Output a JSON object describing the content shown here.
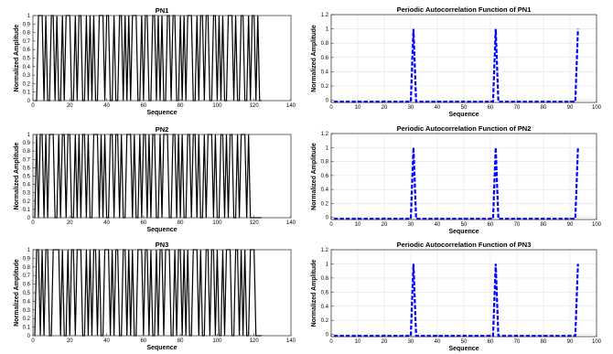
{
  "chart_data": [
    {
      "type": "line",
      "title": "PN1",
      "xlabel": "Sequence",
      "ylabel": "Normalized Amplitude",
      "xlim": [
        0,
        140
      ],
      "ylim": [
        0,
        1
      ],
      "xticks": [
        0,
        20,
        40,
        60,
        80,
        100,
        120,
        140
      ],
      "yticks": [
        0,
        0.1,
        0.2,
        0.3,
        0.4,
        0.5,
        0.6,
        0.7,
        0.8,
        0.9,
        1
      ],
      "yticklabels": [
        "0",
        "0.1",
        "0.2",
        "0.3",
        "0.4",
        "0.5",
        "0.6",
        "0.7",
        "0.8",
        "0.9",
        "1"
      ],
      "grid": false,
      "color": "#000000",
      "dash": false,
      "series": [
        {
          "values": [
            0,
            0,
            1,
            1,
            1,
            0,
            1,
            0,
            0,
            1,
            1,
            0,
            1,
            0,
            0,
            1,
            0,
            1,
            1,
            1,
            0,
            0,
            1,
            0,
            1,
            1,
            0,
            0,
            1,
            0,
            1,
            0,
            1,
            0,
            0,
            1,
            1,
            1,
            0,
            1,
            1,
            0,
            0,
            1,
            0,
            0,
            1,
            1,
            0,
            1,
            0,
            1,
            0,
            1,
            1,
            1,
            0,
            0,
            1,
            0,
            1,
            1,
            0,
            0,
            1,
            1,
            0,
            1,
            0,
            1,
            0,
            0,
            1,
            1,
            0,
            1,
            1,
            0,
            0,
            1,
            0,
            1,
            0,
            1,
            1,
            1,
            0,
            0,
            1,
            0,
            1,
            1,
            0,
            1,
            1,
            0,
            0,
            1,
            1,
            0,
            1,
            0,
            1,
            0,
            0,
            1,
            1,
            1,
            0,
            1,
            0,
            0,
            1,
            1,
            0,
            0,
            1,
            0,
            1,
            1,
            0,
            1,
            0,
            0
          ]
        }
      ]
    },
    {
      "type": "line",
      "title": "Periodic Autocorrelation Function of PN1",
      "xlabel": "Sequence",
      "ylabel": "Normalized Amplitude",
      "xlim": [
        0,
        100
      ],
      "ylim": [
        -0.03,
        1.2
      ],
      "xticks": [
        0,
        10,
        20,
        30,
        40,
        50,
        60,
        70,
        80,
        90,
        100
      ],
      "yticks": [
        0,
        0.2,
        0.4,
        0.6,
        0.8,
        1,
        1.2
      ],
      "yticklabels": [
        "0",
        "0.2",
        "0.4",
        "0.6",
        "0.8",
        "1",
        "1.2"
      ],
      "grid": true,
      "color": "#0000ff",
      "dash": true,
      "peaks": [
        31,
        62,
        93
      ],
      "baseline": -0.02,
      "n": 93
    },
    {
      "type": "line",
      "title": "PN2",
      "xlabel": "Sequence",
      "ylabel": "Normalized Amplitude",
      "xlim": [
        0,
        140
      ],
      "ylim": [
        0,
        1
      ],
      "xticks": [
        0,
        20,
        40,
        60,
        80,
        100,
        120,
        140
      ],
      "yticks": [
        0,
        0.1,
        0.2,
        0.3,
        0.4,
        0.5,
        0.6,
        0.7,
        0.8,
        0.9,
        1
      ],
      "yticklabels": [
        "0",
        "0.1",
        "0.2",
        "0.3",
        "0.4",
        "0.5",
        "0.6",
        "0.7",
        "0.8",
        "0.9",
        "1"
      ],
      "grid": false,
      "color": "#000000",
      "dash": false,
      "series": [
        {
          "values": [
            0,
            1,
            0,
            1,
            1,
            0,
            1,
            0,
            1,
            1,
            1,
            0,
            0,
            1,
            0,
            1,
            1,
            0,
            1,
            1,
            0,
            0,
            1,
            0,
            1,
            0,
            1,
            1,
            0,
            1,
            0,
            0,
            1,
            1,
            1,
            0,
            1,
            0,
            1,
            0,
            0,
            1,
            1,
            0,
            1,
            1,
            0,
            1,
            0,
            0,
            1,
            1,
            1,
            0,
            1,
            0,
            0,
            1,
            0,
            1,
            1,
            0,
            1,
            0,
            1,
            1,
            0,
            0,
            1,
            0,
            1,
            1,
            1,
            0,
            0,
            1,
            1,
            0,
            1,
            0,
            1,
            0,
            0,
            1,
            1,
            0,
            1,
            1,
            0,
            1,
            0,
            0,
            1,
            0,
            1,
            1,
            1,
            0,
            1,
            0,
            0,
            1,
            1,
            0,
            1,
            0,
            1,
            1,
            0,
            0,
            1,
            0,
            1,
            1,
            1,
            0,
            1,
            0,
            0,
            0,
            0,
            0,
            0,
            0
          ]
        }
      ]
    },
    {
      "type": "line",
      "title": "Periodic Autocorrelation Function of PN2",
      "xlabel": "Sequence",
      "ylabel": "Normalized Amplitude",
      "xlim": [
        0,
        100
      ],
      "ylim": [
        -0.03,
        1.2
      ],
      "xticks": [
        0,
        10,
        20,
        30,
        40,
        50,
        60,
        70,
        80,
        90,
        100
      ],
      "yticks": [
        0,
        0.2,
        0.4,
        0.6,
        0.8,
        1,
        1.2
      ],
      "yticklabels": [
        "0",
        "0.2",
        "0.4",
        "0.6",
        "0.8",
        "1",
        "1.2"
      ],
      "grid": true,
      "color": "#0000ff",
      "dash": true,
      "peaks": [
        31,
        62,
        93
      ],
      "baseline": -0.02,
      "n": 93
    },
    {
      "type": "line",
      "title": "PN3",
      "xlabel": "Sequence",
      "ylabel": "Normalized Amplitude",
      "xlim": [
        0,
        140
      ],
      "ylim": [
        0,
        1
      ],
      "xticks": [
        0,
        20,
        40,
        60,
        80,
        100,
        120,
        140
      ],
      "yticks": [
        0,
        0.1,
        0.2,
        0.3,
        0.4,
        0.5,
        0.6,
        0.7,
        0.8,
        0.9,
        1
      ],
      "yticklabels": [
        "0",
        "0.1",
        "0.2",
        "0.3",
        "0.4",
        "0.5",
        "0.6",
        "0.7",
        "0.8",
        "0.9",
        "1"
      ],
      "grid": false,
      "color": "#000000",
      "dash": false,
      "series": [
        {
          "values": [
            0,
            1,
            1,
            0,
            1,
            0,
            1,
            1,
            0,
            0,
            1,
            1,
            1,
            1,
            0,
            1,
            0,
            0,
            1,
            0,
            1,
            1,
            0,
            1,
            1,
            1,
            0,
            0,
            1,
            0,
            1,
            0,
            1,
            1,
            0,
            1,
            0,
            0,
            1,
            1,
            1,
            0,
            1,
            0,
            1,
            1,
            0,
            0,
            1,
            1,
            0,
            1,
            0,
            1,
            0,
            0,
            1,
            1,
            1,
            0,
            1,
            1,
            0,
            1,
            0,
            0,
            1,
            0,
            1,
            1,
            0,
            1,
            1,
            1,
            0,
            0,
            1,
            0,
            1,
            1,
            0,
            1,
            0,
            1,
            0,
            0,
            1,
            1,
            1,
            0,
            1,
            0,
            0,
            1,
            1,
            0,
            1,
            1,
            0,
            1,
            0,
            0,
            1,
            0,
            1,
            1,
            1,
            0,
            0,
            1,
            1,
            0,
            1,
            0,
            1,
            0,
            0,
            1,
            1,
            1,
            0,
            0,
            0,
            0
          ]
        }
      ]
    },
    {
      "type": "line",
      "title": "Periodic Autocorrelation Function of PN3",
      "xlabel": "Sequence",
      "ylabel": "Normalized Amplitude",
      "xlim": [
        0,
        100
      ],
      "ylim": [
        -0.03,
        1.2
      ],
      "xticks": [
        0,
        10,
        20,
        30,
        40,
        50,
        60,
        70,
        80,
        90,
        100
      ],
      "yticks": [
        0,
        0.2,
        0.4,
        0.6,
        0.8,
        1,
        1.2
      ],
      "yticklabels": [
        "0",
        "0.2",
        "0.4",
        "0.6",
        "0.8",
        "1",
        "1.2"
      ],
      "grid": true,
      "color": "#0000ff",
      "dash": true,
      "peaks": [
        31,
        62,
        93
      ],
      "baseline": -0.02,
      "n": 93
    }
  ]
}
